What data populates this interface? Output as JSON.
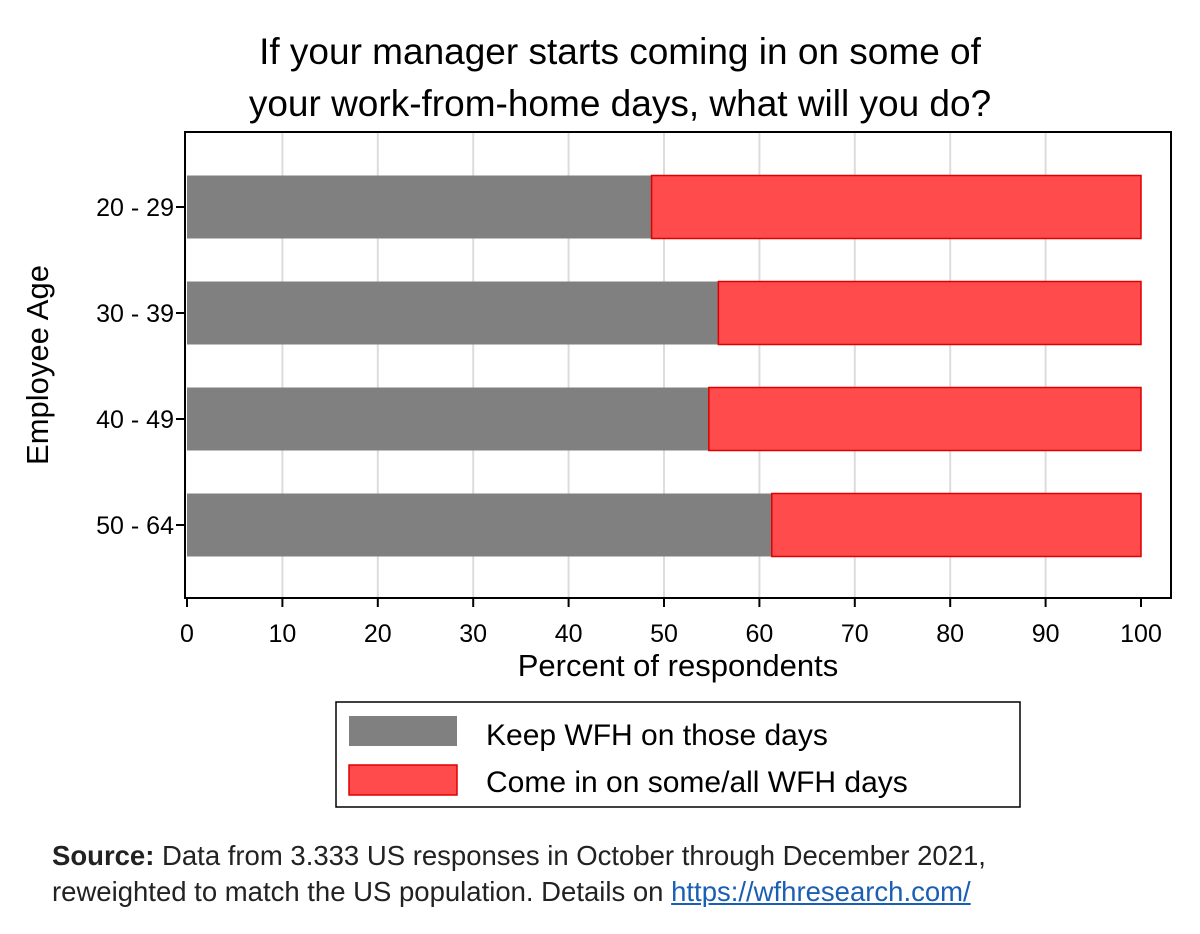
{
  "chart_data": {
    "type": "bar",
    "orientation": "horizontal",
    "stacked": true,
    "title_lines": [
      "If your manager starts coming in on some of",
      "your work-from-home days, what will you do?"
    ],
    "xlabel": "Percent of respondents",
    "ylabel": "Employee Age",
    "xlim": [
      0,
      100
    ],
    "xticks": [
      0,
      10,
      20,
      30,
      40,
      50,
      60,
      70,
      80,
      90,
      100
    ],
    "grid": "vertical",
    "legend_position": "bottom",
    "categories": [
      "20 - 29",
      "30 - 39",
      "40 - 49",
      "50 - 64"
    ],
    "series": [
      {
        "name": "Keep WFH on those days",
        "color": "#808080",
        "values": [
          48.7,
          55.7,
          54.7,
          61.3
        ]
      },
      {
        "name": "Come in on some/all WFH days",
        "color": "#ff4b4b",
        "values": [
          51.3,
          44.3,
          45.3,
          38.7
        ]
      }
    ]
  },
  "source": {
    "label": "Source:",
    "text1": " Data from 3.333 US responses in October through December 2021,",
    "text2": "reweighted to match the US population. Details on ",
    "link": "https://wfhresearch.com/"
  }
}
